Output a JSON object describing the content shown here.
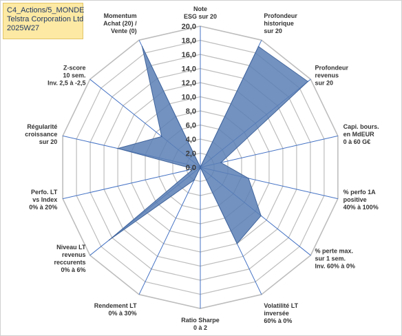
{
  "header": {
    "lines": [
      "C4_Actions/5_MONDE",
      "Telstra Corporation Ltd",
      "2025W27"
    ]
  },
  "chart_data": {
    "type": "radar",
    "title": "",
    "rmin": 0,
    "rmax": 20,
    "grid_step": 2,
    "tick_labels": [
      "0,0",
      "2,0",
      "4,0",
      "6,0",
      "8,0",
      "10,0",
      "12,0",
      "14,0",
      "16,0",
      "18,0",
      "20,0"
    ],
    "axes": [
      [
        "Note",
        "ESG sur 20"
      ],
      [
        "Profondeur",
        "historique",
        "sur 20"
      ],
      [
        "Profondeur",
        "revenus",
        "sur 20"
      ],
      [
        "Capi. bours.",
        "en MdEUR",
        "0 à 60 G€"
      ],
      [
        "% perfo 1A",
        "positive",
        "40% à 100%"
      ],
      [
        "% perte max.",
        "sur 1 sem.",
        "Inv. 60% à 0%"
      ],
      [
        "Volatilité LT",
        "inversée",
        "60% à 0%"
      ],
      [
        "Ratio Sharpe",
        "0 à 2"
      ],
      [
        "Rendement LT",
        "0% à 30%"
      ],
      [
        "Niveau LT",
        "revenus",
        "reccurents",
        "0% à 6%"
      ],
      [
        "Perfo. LT",
        "vs Index",
        "0% à 20%"
      ],
      [
        "Régularité",
        "croissance",
        "sur 20"
      ],
      [
        "Z-score",
        "10 sem.",
        "Inv. 2,5 à -2,5"
      ],
      [
        "Momentum",
        "Achat (20) /",
        "Vente (0)"
      ]
    ],
    "series": [
      {
        "values": [
          0.0,
          19.0,
          19.5,
          3.0,
          7.0,
          11.0,
          12.0,
          0.0,
          2.0,
          16.5,
          1.0,
          12.0,
          7.0,
          19.0
        ]
      }
    ],
    "colors": {
      "fill": "#5b7fb5",
      "stroke": "#41659c",
      "grid": "#bdbdbd",
      "axis": "#4472c4"
    }
  }
}
